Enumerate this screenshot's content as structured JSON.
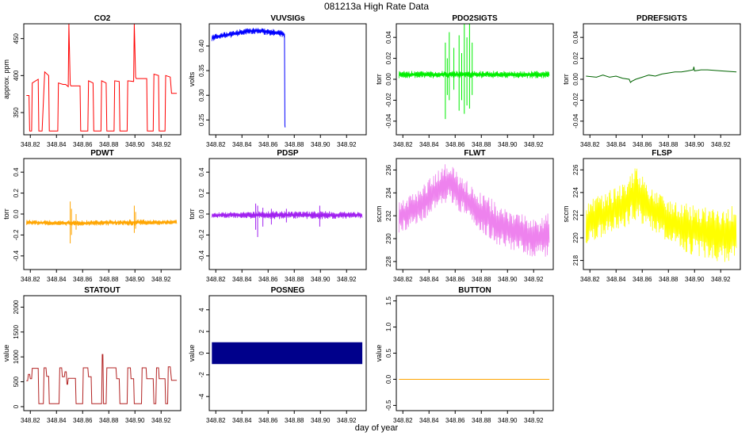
{
  "figure": {
    "title": "081213a   High Rate Data",
    "xlabel": "day of year"
  },
  "chart_data": [
    {
      "type": "line",
      "title": "CO2",
      "ylabel": "approx. ppm",
      "color": "#ff0000",
      "xlim": [
        348.815,
        348.935
      ],
      "ylim": [
        320,
        470
      ],
      "xticks": [
        348.82,
        348.84,
        348.86,
        348.88,
        348.9,
        348.92
      ],
      "xtick_labels": [
        "348.82",
        "348.84",
        "348.86",
        "348.88",
        "348.90",
        "348.92"
      ],
      "yticks": [
        350,
        400,
        450
      ],
      "ytick_labels": [
        "350",
        "400",
        "450"
      ],
      "x": [
        348.817,
        348.819,
        348.8195,
        348.821,
        348.8215,
        348.826,
        348.8265,
        348.829,
        348.831,
        348.834,
        348.8345,
        348.841,
        348.8415,
        348.845,
        348.847,
        348.849,
        348.8495,
        348.8505,
        348.851,
        348.858,
        348.8585,
        348.864,
        348.8645,
        348.868,
        348.8685,
        348.874,
        348.8745,
        348.878,
        348.8785,
        348.884,
        348.8845,
        348.888,
        348.8885,
        348.894,
        348.8945,
        348.899,
        348.8995,
        348.9005,
        348.901,
        348.909,
        348.9095,
        348.914,
        348.9145,
        348.918,
        348.9185,
        348.923,
        348.9235,
        348.927,
        348.928,
        348.932
      ],
      "y": [
        373,
        373,
        325,
        325,
        390,
        395,
        325,
        325,
        405,
        400,
        325,
        325,
        390,
        388,
        388,
        385,
        470,
        388,
        386,
        386,
        325,
        325,
        393,
        390,
        325,
        325,
        393,
        390,
        325,
        325,
        393,
        392,
        325,
        325,
        393,
        392,
        470,
        398,
        396,
        396,
        325,
        325,
        402,
        400,
        325,
        325,
        400,
        398,
        376,
        376
      ]
    },
    {
      "type": "line",
      "title": "VUVSIGs",
      "ylabel": "volts",
      "color": "#0000ff",
      "xlim": [
        348.815,
        348.935
      ],
      "ylim": [
        0.22,
        0.445
      ],
      "xticks": [
        348.82,
        348.84,
        348.86,
        348.88,
        348.9,
        348.92
      ],
      "xtick_labels": [
        "348.82",
        "348.84",
        "348.86",
        "348.88",
        "348.90",
        "348.92"
      ],
      "yticks": [
        0.25,
        0.3,
        0.35,
        0.4
      ],
      "ytick_labels": [
        "0.25",
        "0.30",
        "0.35",
        "0.40"
      ],
      "x": [
        348.817,
        348.83,
        348.84,
        348.85,
        348.86,
        348.87,
        348.8725,
        348.8728,
        348.873
      ],
      "y": [
        0.417,
        0.423,
        0.428,
        0.431,
        0.429,
        0.425,
        0.424,
        0.24,
        0.235
      ],
      "band_x": [
        348.817,
        348.83,
        348.84,
        348.85,
        348.86,
        348.87,
        348.8725
      ],
      "band_low": [
        0.41,
        0.416,
        0.421,
        0.424,
        0.422,
        0.418,
        0.417
      ],
      "band_high": [
        0.424,
        0.43,
        0.435,
        0.438,
        0.436,
        0.432,
        0.431
      ]
    },
    {
      "type": "line",
      "title": "PDO2SIGTS",
      "ylabel": "torr",
      "color": "#00ee00",
      "xlim": [
        348.815,
        348.935
      ],
      "ylim": [
        -0.053,
        0.053
      ],
      "xticks": [
        348.82,
        348.84,
        348.86,
        348.88,
        348.9,
        348.92
      ],
      "xtick_labels": [
        "348.82",
        "348.84",
        "348.86",
        "348.88",
        "348.90",
        "348.92"
      ],
      "yticks": [
        -0.04,
        -0.02,
        0.0,
        0.02,
        0.04
      ],
      "ytick_labels": [
        "-0.04",
        "-0.02",
        "0.00",
        "0.02",
        "0.04"
      ],
      "band_x": [
        348.817,
        348.932
      ],
      "band_low": [
        0.001,
        0.001
      ],
      "band_high": [
        0.008,
        0.008
      ],
      "spikes_x": [
        348.8525,
        348.854,
        348.8555,
        348.859,
        348.863,
        348.865,
        348.867,
        348.869,
        348.871,
        348.873
      ],
      "spikes_high": [
        0.035,
        0.02,
        0.045,
        0.03,
        0.042,
        0.025,
        0.055,
        0.04,
        0.055,
        0.035
      ],
      "spikes_low": [
        -0.038,
        -0.015,
        -0.02,
        -0.01,
        -0.03,
        -0.02,
        -0.033,
        -0.025,
        -0.028,
        -0.015
      ]
    },
    {
      "type": "line",
      "title": "PDREFSIGTS",
      "ylabel": "torr",
      "color": "#006400",
      "xlim": [
        348.815,
        348.935
      ],
      "ylim": [
        -0.053,
        0.053
      ],
      "xticks": [
        348.82,
        348.84,
        348.86,
        348.88,
        348.9,
        348.92
      ],
      "xtick_labels": [
        "348.82",
        "348.84",
        "348.86",
        "348.88",
        "348.90",
        "348.92"
      ],
      "yticks": [
        -0.04,
        -0.02,
        0.0,
        0.02,
        0.04
      ],
      "ytick_labels": [
        "-0.04",
        "-0.02",
        "0.00",
        "0.02",
        "0.04"
      ],
      "x": [
        348.817,
        348.825,
        348.83,
        348.835,
        348.84,
        348.845,
        348.85,
        348.851,
        348.852,
        348.855,
        348.86,
        348.865,
        348.87,
        348.875,
        348.88,
        348.885,
        348.89,
        348.895,
        348.899,
        348.8995,
        348.9,
        348.905,
        348.91,
        348.92,
        348.932
      ],
      "y": [
        0.003,
        0.002,
        0.004,
        0.002,
        0.003,
        0.001,
        0.0,
        -0.003,
        -0.002,
        0.0,
        0.002,
        0.004,
        0.003,
        0.005,
        0.006,
        0.007,
        0.007,
        0.008,
        0.009,
        0.012,
        0.008,
        0.009,
        0.009,
        0.008,
        0.007
      ]
    },
    {
      "type": "line",
      "title": "PDWT",
      "ylabel": "torr",
      "color": "#ffa500",
      "xlim": [
        348.815,
        348.935
      ],
      "ylim": [
        -0.53,
        0.53
      ],
      "xticks": [
        348.82,
        348.84,
        348.86,
        348.88,
        348.9,
        348.92
      ],
      "xtick_labels": [
        "348.82",
        "348.84",
        "348.86",
        "348.88",
        "348.90",
        "348.92"
      ],
      "yticks": [
        -0.4,
        -0.2,
        0.0,
        0.2,
        0.4
      ],
      "ytick_labels": [
        "-0.4",
        "-0.2",
        "0.0",
        "0.2",
        "0.4"
      ],
      "band_x": [
        348.817,
        348.84,
        348.86,
        348.88,
        348.9,
        348.932
      ],
      "band_low": [
        -0.105,
        -0.11,
        -0.115,
        -0.11,
        -0.11,
        -0.1
      ],
      "band_high": [
        -0.055,
        -0.06,
        -0.06,
        -0.055,
        -0.05,
        -0.055
      ],
      "spikes_x": [
        348.8505,
        348.8515,
        348.855,
        348.8995,
        348.9005
      ],
      "spikes_high": [
        0.12,
        0.05,
        0.0,
        0.08,
        0.02
      ],
      "spikes_low": [
        -0.28,
        -0.2,
        -0.15,
        -0.18,
        -0.14
      ]
    },
    {
      "type": "line",
      "title": "PDSP",
      "ylabel": "torr",
      "color": "#a020f0",
      "xlim": [
        348.815,
        348.935
      ],
      "ylim": [
        -0.53,
        0.53
      ],
      "xticks": [
        348.82,
        348.84,
        348.86,
        348.88,
        348.9,
        348.92
      ],
      "xtick_labels": [
        "348.82",
        "348.84",
        "348.86",
        "348.88",
        "348.90",
        "348.92"
      ],
      "yticks": [
        -0.4,
        -0.2,
        0.0,
        0.2,
        0.4
      ],
      "ytick_labels": [
        "-0.4",
        "-0.2",
        "0.0",
        "0.2",
        "0.4"
      ],
      "band_x": [
        348.817,
        348.84,
        348.86,
        348.88,
        348.9,
        348.932
      ],
      "band_low": [
        -0.035,
        -0.04,
        -0.05,
        -0.045,
        -0.05,
        -0.04
      ],
      "band_high": [
        0.015,
        0.02,
        0.03,
        0.025,
        0.03,
        0.02
      ],
      "spikes_x": [
        348.8505,
        348.852,
        348.856,
        348.8625,
        348.874,
        348.8995
      ],
      "spikes_high": [
        0.1,
        0.08,
        0.06,
        0.05,
        0.05,
        0.08
      ],
      "spikes_low": [
        -0.15,
        -0.22,
        -0.12,
        -0.1,
        -0.08,
        -0.12
      ]
    },
    {
      "type": "line",
      "title": "FLWT",
      "ylabel": "sccm",
      "color": "#ee82ee",
      "xlim": [
        348.815,
        348.935
      ],
      "ylim": [
        227.3,
        237.0
      ],
      "xticks": [
        348.82,
        348.84,
        348.86,
        348.88,
        348.9,
        348.92
      ],
      "xtick_labels": [
        "348.82",
        "348.84",
        "348.86",
        "348.88",
        "348.90",
        "348.92"
      ],
      "yticks": [
        228,
        230,
        232,
        234,
        236
      ],
      "ytick_labels": [
        "228",
        "230",
        "232",
        "234",
        "236"
      ],
      "band_x": [
        348.817,
        348.825,
        348.835,
        348.845,
        348.855,
        348.865,
        348.875,
        348.885,
        348.895,
        348.905,
        348.915,
        348.925,
        348.932
      ],
      "band_low": [
        230.5,
        230.8,
        231.5,
        232.5,
        233.2,
        232.2,
        231.0,
        230.0,
        229.2,
        228.8,
        228.5,
        228.2,
        228.3
      ],
      "band_high": [
        233.3,
        233.8,
        234.6,
        235.8,
        236.8,
        235.5,
        234.5,
        233.7,
        233.0,
        232.4,
        232.0,
        231.8,
        232.3
      ]
    },
    {
      "type": "line",
      "title": "FLSP",
      "ylabel": "sccm",
      "color": "#ffff00",
      "xlim": [
        348.815,
        348.935
      ],
      "ylim": [
        217.2,
        227.0
      ],
      "xticks": [
        348.82,
        348.84,
        348.86,
        348.88,
        348.9,
        348.92
      ],
      "xtick_labels": [
        "348.82",
        "348.84",
        "348.86",
        "348.88",
        "348.90",
        "348.92"
      ],
      "yticks": [
        218,
        220,
        222,
        224,
        226
      ],
      "ytick_labels": [
        "218",
        "220",
        "222",
        "224",
        "226"
      ],
      "band_x": [
        348.817,
        348.825,
        348.835,
        348.845,
        348.855,
        348.865,
        348.875,
        348.885,
        348.895,
        348.905,
        348.915,
        348.925,
        348.932
      ],
      "band_low": [
        219.5,
        219.8,
        220.3,
        220.8,
        221.5,
        220.8,
        220.0,
        219.2,
        218.6,
        218.2,
        217.9,
        217.6,
        217.8
      ],
      "band_high": [
        223.3,
        223.6,
        224.2,
        224.8,
        226.4,
        224.6,
        223.8,
        223.3,
        223.0,
        222.8,
        222.6,
        222.6,
        223.0
      ]
    },
    {
      "type": "line",
      "title": "STATOUT",
      "ylabel": "value",
      "color": "#b22222",
      "xlim": [
        348.815,
        348.935
      ],
      "ylim": [
        -80,
        2230
      ],
      "xticks": [
        348.82,
        348.84,
        348.86,
        348.88,
        348.9,
        348.92
      ],
      "xtick_labels": [
        "348.82",
        "348.84",
        "348.86",
        "348.88",
        "348.90",
        "348.92"
      ],
      "yticks": [
        0,
        500,
        1000,
        1500,
        2000
      ],
      "ytick_labels": [
        "0",
        "500",
        "1000",
        "1500",
        "2000"
      ],
      "x": [
        348.817,
        348.818,
        348.8185,
        348.8195,
        348.82,
        348.821,
        348.8215,
        348.826,
        348.8265,
        348.83,
        348.8305,
        348.832,
        348.8325,
        348.834,
        348.8345,
        348.842,
        348.8425,
        348.844,
        348.8445,
        348.846,
        348.8465,
        348.8475,
        348.848,
        348.8485,
        348.849,
        348.8545,
        348.855,
        348.86,
        348.8605,
        348.864,
        348.8645,
        348.8665,
        348.867,
        348.8685,
        348.869,
        348.8745,
        348.875,
        348.8755,
        348.876,
        348.878,
        348.8785,
        348.884,
        348.8845,
        348.8855,
        348.886,
        348.888,
        348.8885,
        348.894,
        348.8945,
        348.8965,
        348.897,
        348.899,
        348.8995,
        348.905,
        348.9055,
        348.9085,
        348.909,
        348.914,
        348.9145,
        348.916,
        348.9165,
        348.918,
        348.9185,
        348.923,
        348.9235,
        348.925,
        348.9255,
        348.927,
        348.928,
        348.932
      ],
      "y": [
        520,
        520,
        650,
        650,
        560,
        560,
        770,
        770,
        60,
        60,
        780,
        780,
        610,
        610,
        60,
        60,
        780,
        780,
        600,
        600,
        700,
        700,
        450,
        450,
        570,
        570,
        60,
        60,
        780,
        780,
        600,
        600,
        60,
        60,
        60,
        60,
        1050,
        1050,
        60,
        60,
        780,
        780,
        780,
        780,
        560,
        560,
        60,
        60,
        780,
        780,
        560,
        560,
        60,
        60,
        780,
        780,
        560,
        560,
        60,
        60,
        780,
        780,
        560,
        560,
        60,
        60,
        800,
        800,
        530,
        530
      ]
    },
    {
      "type": "area",
      "title": "POSNEG",
      "ylabel": "value",
      "color": "#00008b",
      "xlim": [
        348.815,
        348.935
      ],
      "ylim": [
        -5.3,
        5.3
      ],
      "xticks": [
        348.82,
        348.84,
        348.86,
        348.88,
        348.9,
        348.92
      ],
      "xtick_labels": [
        "348.82",
        "348.84",
        "348.86",
        "348.88",
        "348.90",
        "348.92"
      ],
      "yticks": [
        -4,
        -2,
        0,
        2,
        4
      ],
      "ytick_labels": [
        "-4",
        "-2",
        "0",
        "2",
        "4"
      ],
      "band_x": [
        348.817,
        348.932
      ],
      "band_low": [
        -1,
        -1
      ],
      "band_high": [
        1,
        1
      ]
    },
    {
      "type": "line",
      "title": "BUTTON",
      "ylabel": "value",
      "color": "#ffa500",
      "xlim": [
        348.815,
        348.935
      ],
      "ylim": [
        -0.6,
        1.6
      ],
      "xticks": [
        348.82,
        348.84,
        348.86,
        348.88,
        348.9,
        348.92
      ],
      "xtick_labels": [
        "348.82",
        "348.84",
        "348.86",
        "348.88",
        "348.90",
        "348.92"
      ],
      "yticks": [
        -0.5,
        0.0,
        0.5,
        1.0,
        1.5
      ],
      "ytick_labels": [
        "-0.5",
        "0.0",
        "0.5",
        "1.0",
        "1.5"
      ],
      "x": [
        348.817,
        348.932
      ],
      "y": [
        0,
        0
      ]
    }
  ]
}
